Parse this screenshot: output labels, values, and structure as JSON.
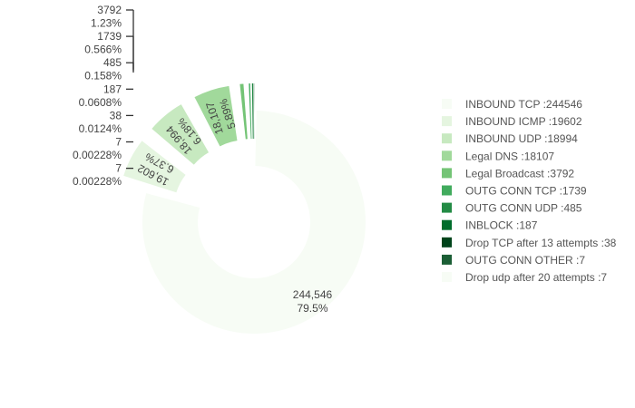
{
  "chart_data": {
    "type": "pie",
    "donut": true,
    "legend_position": "right",
    "slices": [
      {
        "name": "INBOUND TCP",
        "value": 244546,
        "value_label": "244,546",
        "pct_label": "79.5%",
        "color": "#f7fcf5",
        "legend": "INBOUND TCP :244546"
      },
      {
        "name": "INBOUND ICMP",
        "value": 19602,
        "value_label": "19,602",
        "pct_label": "6.37%",
        "color": "#e5f5e0",
        "legend": "INBOUND ICMP :19602"
      },
      {
        "name": "INBOUND UDP",
        "value": 18994,
        "value_label": "18,994",
        "pct_label": "6.18%",
        "color": "#c7e9c0",
        "legend": "INBOUND UDP :18994"
      },
      {
        "name": "Legal DNS",
        "value": 18107,
        "value_label": "18,107",
        "pct_label": "5.89%",
        "color": "#a1d99b",
        "legend": "Legal DNS :18107"
      },
      {
        "name": "Legal Broadcast",
        "value": 3792,
        "value_label": "3792",
        "pct_label": "1.23%",
        "color": "#74c476",
        "legend": "Legal Broadcast :3792"
      },
      {
        "name": "OUTG CONN TCP",
        "value": 1739,
        "value_label": "1739",
        "pct_label": "0.566%",
        "color": "#41ab5d",
        "legend": "OUTG CONN TCP :1739"
      },
      {
        "name": "OUTG CONN UDP",
        "value": 485,
        "value_label": "485",
        "pct_label": "0.158%",
        "color": "#238b45",
        "legend": "OUTG CONN UDP :485"
      },
      {
        "name": "INBLOCK",
        "value": 187,
        "value_label": "187",
        "pct_label": "0.0608%",
        "color": "#006d2c",
        "legend": "INBLOCK :187"
      },
      {
        "name": "Drop TCP after 13 attempts",
        "value": 38,
        "value_label": "38",
        "pct_label": "0.0124%",
        "color": "#00441b",
        "legend": "Drop TCP after 13 attempts :38"
      },
      {
        "name": "OUTG CONN OTHER",
        "value": 7,
        "value_label": "7",
        "pct_label": "0.00228%",
        "color": "#1b5e35",
        "legend": "OUTG CONN OTHER :7"
      },
      {
        "name": "Drop udp after 20 attempts",
        "value": 7,
        "value_label": "7",
        "pct_label": "0.00228%",
        "color": "#f7fcf5",
        "legend": "Drop udp after 20 attempts :7"
      }
    ]
  }
}
